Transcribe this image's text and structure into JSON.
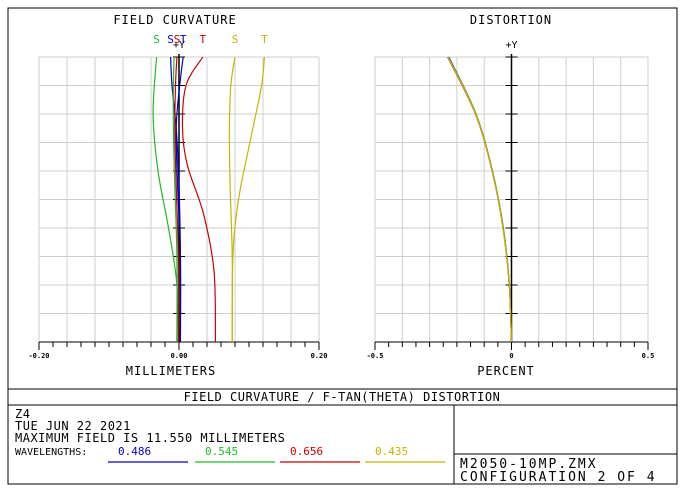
{
  "panel_titles": {
    "field_curvature": "FIELD CURVATURE",
    "distortion": "DISTORTION"
  },
  "chart_data": [
    {
      "type": "line",
      "title": "FIELD CURVATURE",
      "xlabel": "MILLIMETERS",
      "y_axis_label": "+Y",
      "x_tick_labels": [
        "-0.20",
        "0.00",
        "0.20"
      ],
      "xlim": [
        -0.2,
        0.2
      ],
      "ylim": [
        0,
        1
      ],
      "grid": true,
      "top_labels": [
        {
          "text": "S",
          "color": "#22bb22",
          "x": -0.032
        },
        {
          "text": "S",
          "color": "#0000cc",
          "x": -0.012
        },
        {
          "text": "S",
          "color": "#cc0000",
          "x": -0.003
        },
        {
          "text": "T",
          "color": "#0000cc",
          "x": 0.006
        },
        {
          "text": "T",
          "color": "#cc0000",
          "x": 0.034
        },
        {
          "text": "S",
          "color": "#c8b400",
          "x": 0.08
        },
        {
          "text": "T",
          "color": "#c8b400",
          "x": 0.122
        }
      ],
      "series": [
        {
          "wavelength": "0.486",
          "type": "S",
          "color": "#0000cc",
          "points": [
            [
              0.002,
              0
            ],
            [
              0.002,
              0.3
            ],
            [
              0.0,
              0.55
            ],
            [
              -0.004,
              0.75
            ],
            [
              -0.01,
              0.9
            ],
            [
              -0.012,
              1.0
            ]
          ]
        },
        {
          "wavelength": "0.486",
          "type": "T",
          "color": "#0000cc",
          "points": [
            [
              0.002,
              0
            ],
            [
              0.002,
              0.3
            ],
            [
              -0.002,
              0.55
            ],
            [
              -0.004,
              0.75
            ],
            [
              0.001,
              0.9
            ],
            [
              0.006,
              1.0
            ]
          ]
        },
        {
          "wavelength": "0.545",
          "type": "S",
          "color": "#22bb22",
          "points": [
            [
              -0.003,
              0
            ],
            [
              -0.003,
              0.2
            ],
            [
              -0.015,
              0.4
            ],
            [
              -0.03,
              0.6
            ],
            [
              -0.037,
              0.8
            ],
            [
              -0.032,
              1.0
            ]
          ]
        },
        {
          "wavelength": "0.545",
          "type": "T",
          "color": "#22bb22",
          "points": [
            [
              -0.003,
              0
            ],
            [
              -0.003,
              0.3
            ],
            [
              -0.006,
              0.55
            ],
            [
              -0.008,
              0.75
            ],
            [
              -0.008,
              0.9
            ],
            [
              -0.007,
              1.0
            ]
          ]
        },
        {
          "wavelength": "0.656",
          "type": "S",
          "color": "#cc0000",
          "points": [
            [
              -0.001,
              0
            ],
            [
              -0.001,
              0.3
            ],
            [
              -0.004,
              0.55
            ],
            [
              -0.006,
              0.75
            ],
            [
              -0.005,
              0.9
            ],
            [
              -0.003,
              1.0
            ]
          ]
        },
        {
          "wavelength": "0.656",
          "type": "T",
          "color": "#cc0000",
          "points": [
            [
              0.052,
              0
            ],
            [
              0.05,
              0.25
            ],
            [
              0.035,
              0.45
            ],
            [
              0.012,
              0.62
            ],
            [
              0.005,
              0.75
            ],
            [
              0.01,
              0.9
            ],
            [
              0.034,
              1.0
            ]
          ]
        },
        {
          "wavelength": "0.435",
          "type": "S",
          "color": "#c8b400",
          "points": [
            [
              0.076,
              0
            ],
            [
              0.076,
              0.3
            ],
            [
              0.073,
              0.55
            ],
            [
              0.072,
              0.75
            ],
            [
              0.074,
              0.9
            ],
            [
              0.08,
              1.0
            ]
          ]
        },
        {
          "wavelength": "0.435",
          "type": "T",
          "color": "#c8b400",
          "points": [
            [
              0.076,
              0
            ],
            [
              0.077,
              0.3
            ],
            [
              0.085,
              0.5
            ],
            [
              0.103,
              0.72
            ],
            [
              0.118,
              0.9
            ],
            [
              0.122,
              1.0
            ]
          ]
        }
      ]
    },
    {
      "type": "line",
      "title": "DISTORTION",
      "xlabel": "PERCENT",
      "y_axis_label": "+Y",
      "x_tick_labels": [
        "-0.5",
        "0",
        "0.5"
      ],
      "xlim": [
        -0.5,
        0.5
      ],
      "ylim": [
        0,
        1
      ],
      "grid": true,
      "series": [
        {
          "wavelength": "0.486",
          "color": "#0000cc",
          "points": [
            [
              0,
              0
            ],
            [
              -0.008,
              0.2
            ],
            [
              -0.03,
              0.4
            ],
            [
              -0.07,
              0.6
            ],
            [
              -0.13,
              0.8
            ],
            [
              -0.23,
              1.0
            ]
          ]
        },
        {
          "wavelength": "0.545",
          "color": "#22bb22",
          "points": [
            [
              0,
              0
            ],
            [
              -0.008,
              0.2
            ],
            [
              -0.03,
              0.4
            ],
            [
              -0.07,
              0.6
            ],
            [
              -0.13,
              0.8
            ],
            [
              -0.232,
              1.0
            ]
          ]
        },
        {
          "wavelength": "0.656",
          "color": "#cc0000",
          "points": [
            [
              0,
              0
            ],
            [
              -0.008,
              0.2
            ],
            [
              -0.031,
              0.4
            ],
            [
              -0.071,
              0.6
            ],
            [
              -0.132,
              0.8
            ],
            [
              -0.234,
              1.0
            ]
          ]
        },
        {
          "wavelength": "0.435",
          "color": "#c8b400",
          "points": [
            [
              0,
              0
            ],
            [
              -0.008,
              0.2
            ],
            [
              -0.031,
              0.4
            ],
            [
              -0.071,
              0.6
            ],
            [
              -0.131,
              0.8
            ],
            [
              -0.233,
              1.0
            ]
          ]
        }
      ]
    }
  ],
  "footer": {
    "title": "FIELD CURVATURE / F-TAN(THETA) DISTORTION",
    "lines": [
      "Z4",
      "TUE JUN 22 2021",
      "MAXIMUM FIELD IS 11.550 MILLIMETERS"
    ],
    "wavelengths_label": "WAVELENGTHS:",
    "wavelengths": [
      {
        "value": "0.486",
        "color": "#0000cc"
      },
      {
        "value": "0.545",
        "color": "#22bb22"
      },
      {
        "value": "0.656",
        "color": "#cc0000"
      },
      {
        "value": "0.435",
        "color": "#c8b400"
      }
    ],
    "file": "M2050-10MP.ZMX",
    "config": "CONFIGURATION 2 OF 4"
  }
}
